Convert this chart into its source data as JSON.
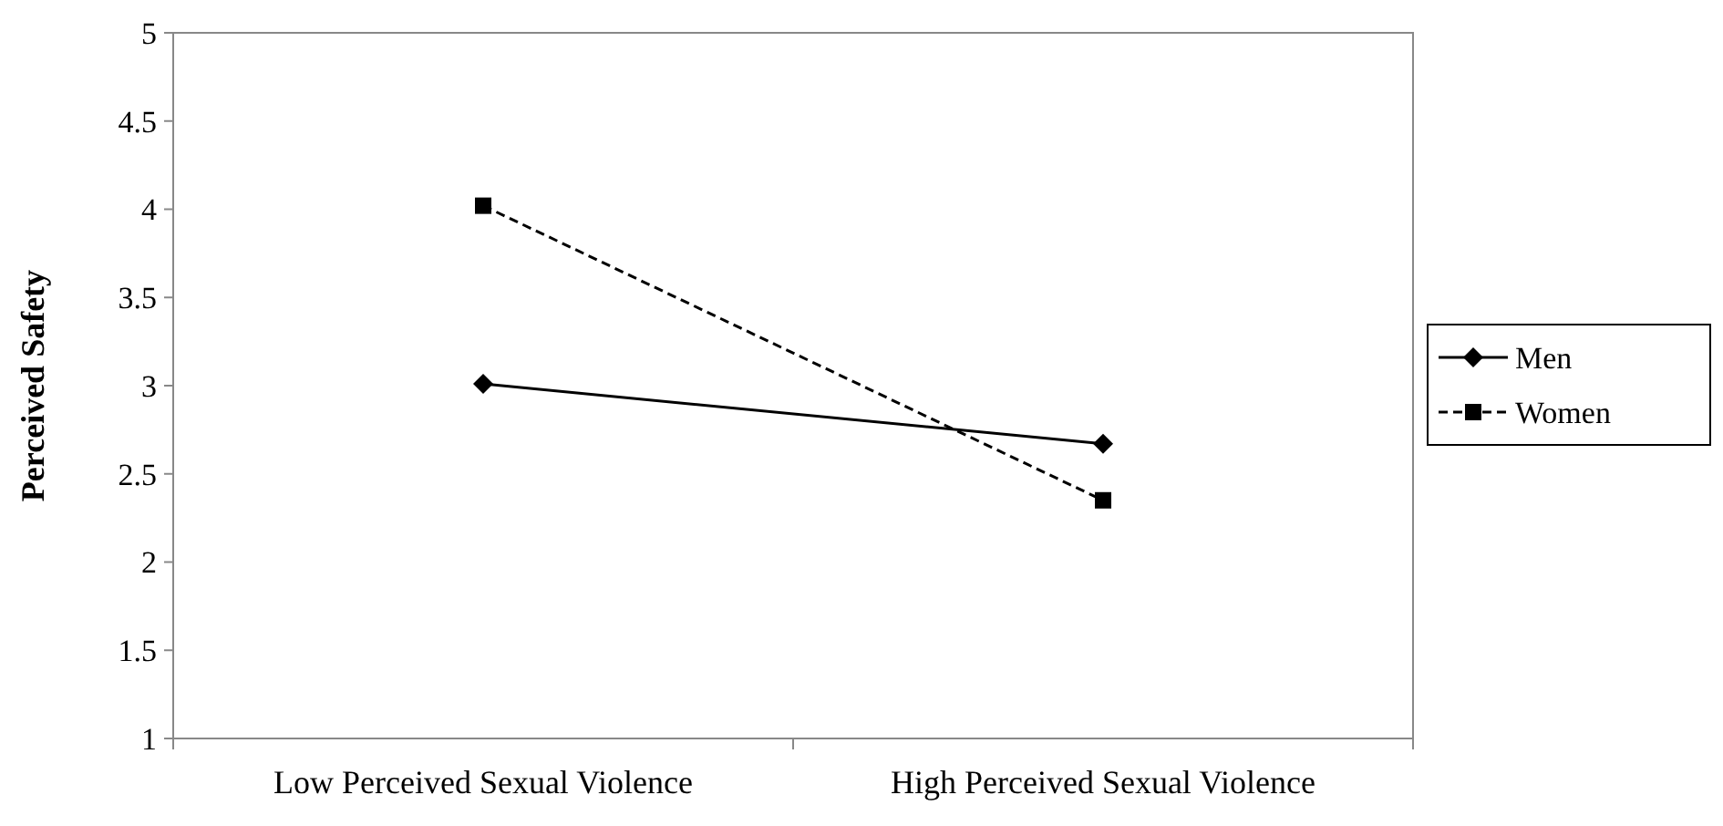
{
  "chart_data": {
    "type": "line",
    "ylabel": "Perceived Safety",
    "categories": [
      "Low Perceived Sexual Violence",
      "High Perceived Sexual Violence"
    ],
    "series": [
      {
        "name": "Men",
        "color": "#000000",
        "values": [
          3.01,
          2.67
        ],
        "marker": "diamond",
        "line_style": "solid"
      },
      {
        "name": "Women",
        "color": "#000000",
        "values": [
          4.02,
          2.35
        ],
        "marker": "square",
        "line_style": "dashed"
      }
    ],
    "ylim": [
      1,
      5
    ],
    "yticks": [
      1,
      1.5,
      2,
      2.5,
      3,
      3.5,
      4,
      4.5,
      5
    ],
    "grid": false,
    "legend": "right"
  }
}
